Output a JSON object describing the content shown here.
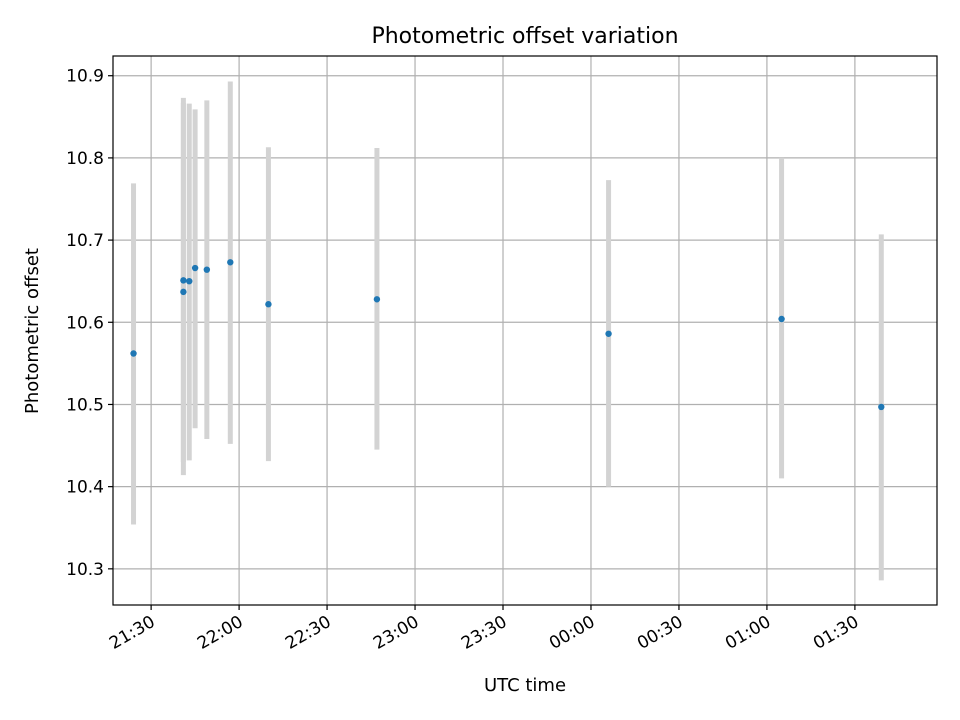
{
  "chart_data": {
    "type": "scatter",
    "title": "Photometric offset variation",
    "xlabel": "UTC time",
    "ylabel": "Photometric offset",
    "x_unit": "UTC time of day (HH:MM)",
    "xlim": [
      "21:17",
      "01:58"
    ],
    "ylim": [
      10.256,
      10.924
    ],
    "x_ticks": [
      "21:30",
      "22:00",
      "22:30",
      "23:00",
      "23:30",
      "00:00",
      "00:30",
      "01:00",
      "01:30"
    ],
    "y_ticks": [
      10.3,
      10.4,
      10.5,
      10.6,
      10.7,
      10.8,
      10.9
    ],
    "y_tick_labels": [
      "10.3",
      "10.4",
      "10.5",
      "10.6",
      "10.7",
      "10.8",
      "10.9"
    ],
    "grid": true,
    "colors": {
      "point": "#1f77b4",
      "errorbar": "#d3d3d3",
      "grid": "#b0b0b0",
      "axes": "#000000"
    },
    "series": [
      {
        "points": [
          {
            "x": "21:24",
            "y": 10.562,
            "ylow": 10.354,
            "yhigh": 10.769
          },
          {
            "x": "21:41",
            "y": 10.637,
            "ylow": 10.414,
            "yhigh": 10.873
          },
          {
            "x": "21:41",
            "y": 10.651,
            "ylow": 10.43,
            "yhigh": 10.867
          },
          {
            "x": "21:43",
            "y": 10.65,
            "ylow": 10.432,
            "yhigh": 10.866
          },
          {
            "x": "21:45",
            "y": 10.666,
            "ylow": 10.471,
            "yhigh": 10.859
          },
          {
            "x": "21:49",
            "y": 10.664,
            "ylow": 10.458,
            "yhigh": 10.87
          },
          {
            "x": "21:57",
            "y": 10.673,
            "ylow": 10.452,
            "yhigh": 10.893
          },
          {
            "x": "22:10",
            "y": 10.622,
            "ylow": 10.431,
            "yhigh": 10.813
          },
          {
            "x": "22:47",
            "y": 10.628,
            "ylow": 10.445,
            "yhigh": 10.812
          },
          {
            "x": "00:06",
            "y": 10.586,
            "ylow": 10.4,
            "yhigh": 10.773
          },
          {
            "x": "01:05",
            "y": 10.604,
            "ylow": 10.41,
            "yhigh": 10.8
          },
          {
            "x": "01:39",
            "y": 10.497,
            "ylow": 10.286,
            "yhigh": 10.707
          }
        ]
      }
    ]
  }
}
